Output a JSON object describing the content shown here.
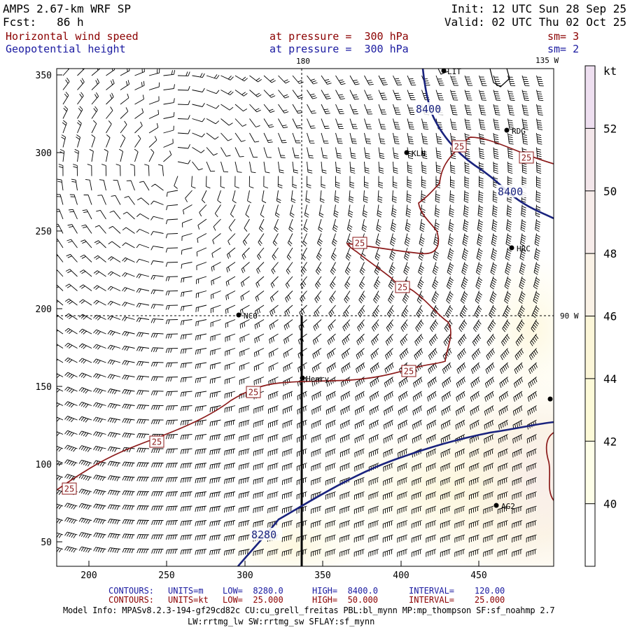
{
  "header": {
    "model": "AMPS 2.67-km WRF SP",
    "fcst": "Fcst:   86 h",
    "init": "Init: 12 UTC Sun 28 Sep 25",
    "valid": "Valid: 02 UTC Thu 02 Oct 25",
    "field1": "Horizontal wind speed",
    "field1_level": "at pressure =  300 hPa",
    "field1_sm": "sm= 3",
    "field2": "Geopotential height",
    "field2_level": "at pressure =  300 hPa",
    "field2_sm": "sm= 2"
  },
  "map": {
    "lon_180": "180",
    "lon_135w": "135 W",
    "lon_90w": "90 W",
    "x_ticks": [
      "200",
      "250",
      "300",
      "350",
      "400",
      "450"
    ],
    "y_ticks": [
      "350",
      "300",
      "250",
      "200",
      "150",
      "100",
      "50"
    ],
    "stations": [
      "LIT",
      "RDG",
      "KLN",
      "HRC",
      "NCO",
      "Henry",
      "AG2"
    ],
    "height_labels": [
      "8400",
      "8400",
      "8280"
    ],
    "speed_label": "25",
    "colors": {
      "height": "#1a237e",
      "speed": "#8b1a1a"
    }
  },
  "colorbar": {
    "unit": "kt",
    "labels": [
      "52",
      "50",
      "48",
      "46",
      "44",
      "42",
      "40"
    ],
    "colors": [
      "#eedff0",
      "#f3e6ea",
      "#f7ecea",
      "#faf2e6",
      "#fcf6d8",
      "#fdfad8",
      "#fefee8",
      "#ffffff"
    ]
  },
  "footer": {
    "c1_label": "CONTOURS:",
    "c1_units": "UNITS=m",
    "c1_low": "LOW=  8280.0",
    "c1_high": "HIGH=  8400.0",
    "c1_int": "INTERVAL=    120.00",
    "c2_label": "CONTOURS:",
    "c2_units": "UNITS=kt",
    "c2_low": "LOW=  25.000",
    "c2_high": "HIGH=  50.000",
    "c2_int": "INTERVAL=    25.000",
    "model_info": "Model Info: MPASv8.2.3-194-gf29cd82c CU:cu_grell_freitas PBL:bl_mynn MP:mp_thompson SF:sf_noahmp 2.7",
    "model_info2": "LW:rrtmg_lw SW:rrtmg_sw SFLAY:sf_mynn"
  }
}
